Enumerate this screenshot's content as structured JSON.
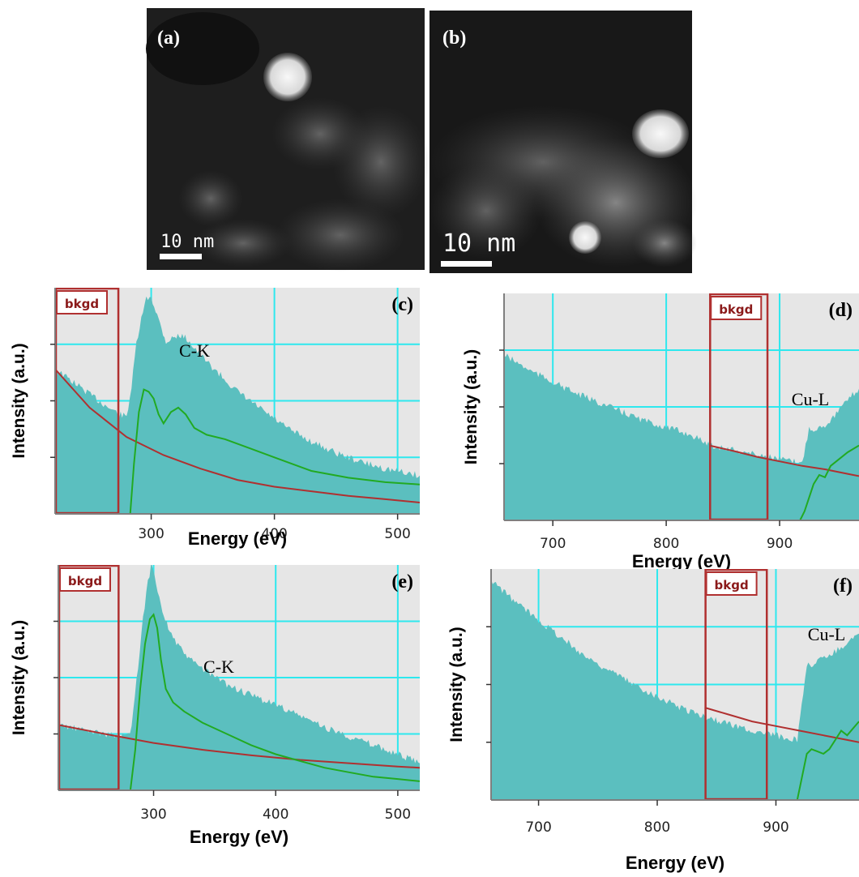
{
  "images": [
    {
      "panel_label": "(a)",
      "scale_bar_label": "10 nm"
    },
    {
      "panel_label": "(b)",
      "scale_bar_label": "10 nm"
    }
  ],
  "chart_data": [
    {
      "type": "area",
      "panel_label": "(c)",
      "peak_label": "C-K",
      "window_label": "bkgd",
      "background_window": [
        222,
        274
      ],
      "xlabel": "Energy (eV)",
      "ylabel": "Intensity (a.u.)",
      "x_ticks": [
        300,
        400,
        500
      ],
      "xlim": [
        222,
        518
      ],
      "ylim": [
        0,
        1
      ],
      "grid": true,
      "series": [
        {
          "role": "raw_spectrum",
          "color": "#5bbfbf",
          "x": [
            222,
            240,
            260,
            274,
            280,
            284,
            288,
            292,
            296,
            300,
            306,
            312,
            318,
            324,
            330,
            340,
            355,
            370,
            390,
            410,
            430,
            450,
            470,
            490,
            518
          ],
          "values": [
            0.64,
            0.57,
            0.49,
            0.44,
            0.43,
            0.56,
            0.75,
            0.86,
            0.95,
            0.96,
            0.86,
            0.76,
            0.78,
            0.79,
            0.77,
            0.7,
            0.62,
            0.54,
            0.46,
            0.38,
            0.32,
            0.27,
            0.23,
            0.2,
            0.17
          ]
        },
        {
          "role": "background_fit",
          "color": "#b03030",
          "x": [
            222,
            250,
            280,
            310,
            340,
            370,
            400,
            430,
            460,
            490,
            518
          ],
          "values": [
            0.64,
            0.47,
            0.34,
            0.26,
            0.2,
            0.15,
            0.12,
            0.1,
            0.08,
            0.065,
            0.05
          ]
        },
        {
          "role": "background_subtracted",
          "color": "#22aa22",
          "x": [
            283,
            286,
            290,
            294,
            298,
            302,
            306,
            310,
            316,
            322,
            328,
            335,
            345,
            360,
            380,
            400,
            430,
            460,
            490,
            518
          ],
          "values": [
            0,
            0.22,
            0.45,
            0.55,
            0.54,
            0.51,
            0.44,
            0.4,
            0.45,
            0.47,
            0.44,
            0.38,
            0.35,
            0.33,
            0.29,
            0.25,
            0.19,
            0.16,
            0.14,
            0.13
          ]
        }
      ]
    },
    {
      "type": "area",
      "panel_label": "(d)",
      "peak_label": "Cu-L",
      "window_label": "bkgd",
      "background_window": [
        838,
        890
      ],
      "xlabel": "Energy (eV)",
      "ylabel": "Intensity (a.u.)",
      "x_ticks": [
        700,
        800,
        900
      ],
      "xlim": [
        657,
        970
      ],
      "ylim": [
        0,
        1
      ],
      "grid": true,
      "series": [
        {
          "role": "raw_spectrum",
          "color": "#5bbfbf",
          "x": [
            657,
            680,
            700,
            720,
            740,
            760,
            780,
            800,
            820,
            840,
            860,
            880,
            900,
            920,
            926,
            930,
            940,
            950,
            960,
            970
          ],
          "values": [
            0.73,
            0.66,
            0.61,
            0.56,
            0.52,
            0.48,
            0.44,
            0.41,
            0.38,
            0.33,
            0.31,
            0.29,
            0.27,
            0.25,
            0.41,
            0.4,
            0.42,
            0.47,
            0.53,
            0.58
          ]
        },
        {
          "role": "background_fit",
          "color": "#b03030",
          "x": [
            838,
            860,
            880,
            900,
            920,
            940,
            960,
            970
          ],
          "values": [
            0.33,
            0.305,
            0.28,
            0.26,
            0.24,
            0.225,
            0.205,
            0.195
          ]
        },
        {
          "role": "background_subtracted",
          "color": "#22aa22",
          "x": [
            918,
            922,
            926,
            930,
            935,
            940,
            945,
            950,
            960,
            970
          ],
          "values": [
            0,
            0.04,
            0.1,
            0.16,
            0.2,
            0.19,
            0.24,
            0.26,
            0.3,
            0.33
          ]
        }
      ]
    },
    {
      "type": "area",
      "panel_label": "(e)",
      "peak_label": "C-K",
      "window_label": "bkgd",
      "background_window": [
        222,
        272
      ],
      "xlabel": "Energy (eV)",
      "ylabel": "Intensity (a.u.)",
      "x_ticks": [
        300,
        400,
        500
      ],
      "xlim": [
        222,
        518
      ],
      "ylim": [
        0,
        1
      ],
      "grid": true,
      "series": [
        {
          "role": "raw_spectrum",
          "color": "#5bbfbf",
          "x": [
            222,
            240,
            260,
            272,
            278,
            282,
            286,
            290,
            294,
            298,
            302,
            306,
            312,
            320,
            330,
            345,
            360,
            380,
            400,
            420,
            440,
            460,
            480,
            500,
            518
          ],
          "values": [
            0.29,
            0.27,
            0.25,
            0.24,
            0.24,
            0.28,
            0.48,
            0.7,
            0.88,
            1.0,
            0.93,
            0.82,
            0.72,
            0.64,
            0.58,
            0.52,
            0.47,
            0.42,
            0.38,
            0.33,
            0.28,
            0.24,
            0.2,
            0.16,
            0.12
          ]
        },
        {
          "role": "background_fit",
          "color": "#b03030",
          "x": [
            222,
            260,
            300,
            340,
            380,
            420,
            460,
            500,
            518
          ],
          "values": [
            0.29,
            0.25,
            0.21,
            0.18,
            0.155,
            0.135,
            0.12,
            0.105,
            0.1
          ]
        },
        {
          "role": "background_subtracted",
          "color": "#22aa22",
          "x": [
            281,
            285,
            289,
            293,
            297,
            300,
            303,
            306,
            310,
            316,
            325,
            340,
            360,
            380,
            400,
            420,
            440,
            460,
            480,
            500,
            518
          ],
          "values": [
            0,
            0.18,
            0.45,
            0.65,
            0.76,
            0.78,
            0.72,
            0.58,
            0.45,
            0.39,
            0.35,
            0.3,
            0.25,
            0.2,
            0.16,
            0.13,
            0.1,
            0.08,
            0.06,
            0.05,
            0.04
          ]
        }
      ]
    },
    {
      "type": "area",
      "panel_label": "(f)",
      "peak_label": "Cu-L",
      "window_label": "bkgd",
      "background_window": [
        840,
        893
      ],
      "xlabel": "Energy (eV)",
      "ylabel": "Intensity (a.u.)",
      "x_ticks": [
        700,
        800,
        900
      ],
      "xlim": [
        660,
        970
      ],
      "ylim": [
        0,
        1
      ],
      "grid": true,
      "series": [
        {
          "role": "raw_spectrum",
          "color": "#5bbfbf",
          "x": [
            660,
            680,
            700,
            720,
            740,
            760,
            780,
            800,
            820,
            840,
            860,
            880,
            900,
            918,
            923,
            926,
            935,
            945,
            955,
            965,
            970
          ],
          "values": [
            0.95,
            0.86,
            0.78,
            0.7,
            0.62,
            0.56,
            0.5,
            0.45,
            0.4,
            0.36,
            0.33,
            0.3,
            0.28,
            0.26,
            0.45,
            0.58,
            0.6,
            0.63,
            0.66,
            0.7,
            0.72
          ]
        },
        {
          "role": "background_fit",
          "color": "#b03030",
          "x": [
            840,
            860,
            880,
            900,
            920,
            940,
            960,
            970
          ],
          "values": [
            0.4,
            0.37,
            0.34,
            0.32,
            0.3,
            0.28,
            0.26,
            0.25
          ]
        },
        {
          "role": "background_subtracted",
          "color": "#22aa22",
          "x": [
            918,
            922,
            926,
            930,
            935,
            940,
            945,
            950,
            955,
            960,
            965,
            970
          ],
          "values": [
            0,
            0.1,
            0.2,
            0.22,
            0.21,
            0.2,
            0.22,
            0.26,
            0.3,
            0.28,
            0.31,
            0.34
          ]
        }
      ]
    }
  ]
}
